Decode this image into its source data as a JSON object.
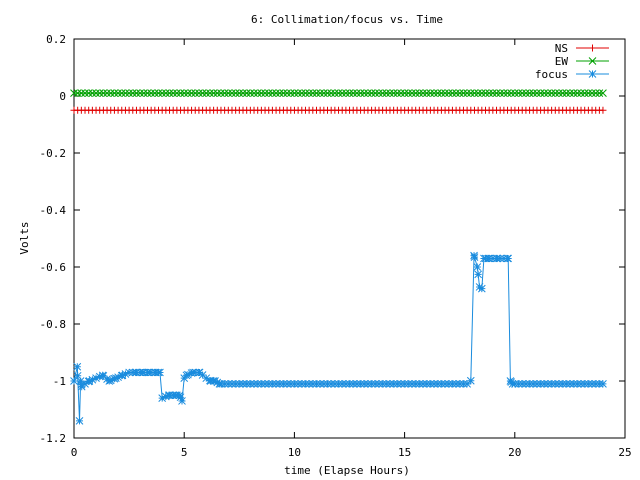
{
  "chart_data": {
    "type": "line",
    "title": "6: Collimation/focus vs. Time",
    "xlabel": "time (Elapse Hours)",
    "ylabel": "Volts",
    "xlim": [
      0,
      25
    ],
    "ylim": [
      -1.2,
      0.2
    ],
    "xticks": [
      0,
      5,
      10,
      15,
      20,
      25
    ],
    "xtick_labels": [
      "0",
      "5",
      "10",
      "15",
      "20",
      "25"
    ],
    "yticks": [
      0.2,
      0,
      -0.2,
      -0.4,
      -0.6,
      -0.8,
      -1,
      -1.2
    ],
    "ytick_labels": [
      "0.2",
      "0",
      "-0.2",
      "-0.4",
      "-0.6",
      "-0.8",
      "-1",
      "-1.2"
    ],
    "grid": false,
    "legend_position": "top-right",
    "series": [
      {
        "name": "NS",
        "color": "#e00000",
        "marker": "plus",
        "x": [
          0,
          24
        ],
        "y": [
          -0.05,
          -0.05
        ],
        "sample_interval": 0.1667
      },
      {
        "name": "EW",
        "color": "#00a000",
        "marker": "cross",
        "x": [
          0,
          24
        ],
        "y": [
          0.01,
          0.01
        ],
        "sample_interval": 0.1667
      },
      {
        "name": "focus",
        "color": "#1a8cde",
        "marker": "star",
        "x": [
          0,
          0.15,
          0.25,
          0.3,
          0.35,
          0.5,
          0.7,
          1.0,
          1.3,
          1.6,
          1.9,
          2.2,
          2.5,
          2.8,
          3.1,
          3.4,
          3.7,
          3.9,
          4.0,
          4.3,
          4.6,
          4.8,
          4.9,
          5.0,
          5.1,
          5.4,
          5.7,
          6.0,
          6.2,
          6.4,
          6.6,
          7.0,
          8.0,
          9.0,
          10.0,
          11.0,
          12.0,
          13.0,
          14.0,
          15.0,
          16.0,
          17.0,
          18.0,
          18.15,
          18.3,
          18.4,
          18.5,
          18.6,
          18.8,
          19.0,
          19.2,
          19.5,
          19.7,
          19.8,
          19.9,
          20.0,
          21.0,
          22.0,
          23.0,
          24.0
        ],
        "y": [
          -1.0,
          -0.95,
          -1.14,
          -1.0,
          -1.02,
          -1.01,
          -1.0,
          -0.99,
          -0.98,
          -1.0,
          -0.99,
          -0.98,
          -0.97,
          -0.97,
          -0.97,
          -0.97,
          -0.97,
          -0.97,
          -1.06,
          -1.05,
          -1.05,
          -1.05,
          -1.07,
          -0.99,
          -0.98,
          -0.97,
          -0.97,
          -0.99,
          -1.0,
          -1.0,
          -1.01,
          -1.01,
          -1.01,
          -1.01,
          -1.01,
          -1.01,
          -1.01,
          -1.01,
          -1.01,
          -1.01,
          -1.01,
          -1.01,
          -1.01,
          -0.56,
          -0.6,
          -0.67,
          -0.68,
          -0.57,
          -0.57,
          -0.57,
          -0.57,
          -0.57,
          -0.57,
          -1.0,
          -1.01,
          -1.01,
          -1.01,
          -1.01,
          -1.01,
          -1.01
        ],
        "sample_interval": 0.1667
      }
    ]
  }
}
